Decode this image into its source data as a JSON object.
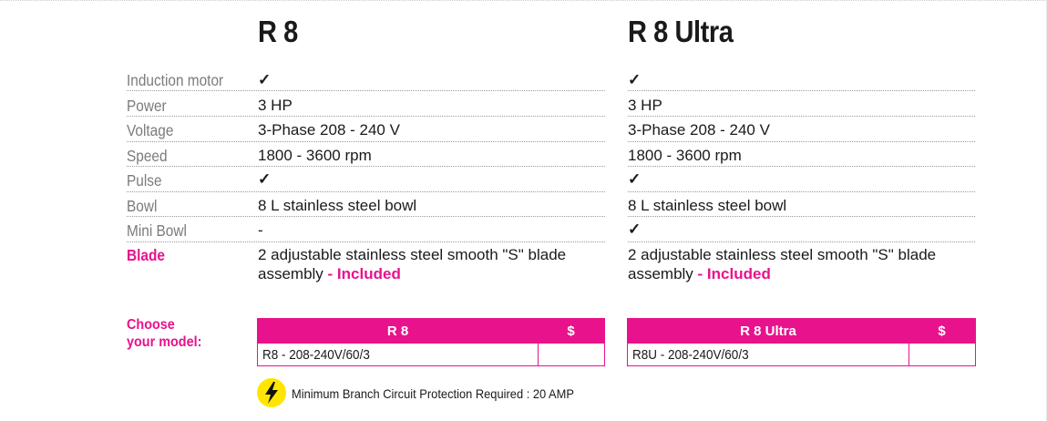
{
  "products": [
    {
      "name": "R 8"
    },
    {
      "name": "R 8 Ultra"
    }
  ],
  "specs": [
    {
      "label": "Induction motor",
      "v1": "✓",
      "v2": "✓"
    },
    {
      "label": "Power",
      "v1": "3 HP",
      "v2": "3 HP"
    },
    {
      "label": "Voltage",
      "v1": "3-Phase 208 - 240 V",
      "v2": "3-Phase 208 - 240 V"
    },
    {
      "label": "Speed",
      "v1": "1800 - 3600 rpm",
      "v2": "1800 - 3600 rpm"
    },
    {
      "label": "Pulse",
      "v1": "✓",
      "v2": "✓"
    },
    {
      "label": "Bowl",
      "v1": "8 L stainless steel bowl",
      "v2": "8 L stainless steel bowl"
    },
    {
      "label": "Mini Bowl",
      "v1": "-",
      "v2": "✓"
    }
  ],
  "blade": {
    "label": "Blade",
    "line1": "2 adjustable stainless steel smooth \"S\" blade",
    "line2": "assembly",
    "included": "- Included"
  },
  "choose": {
    "line1": "Choose",
    "line2": "your model:"
  },
  "models": [
    {
      "header": "R 8",
      "price_header": "$",
      "model": "R8 - 208-240V/60/3",
      "price": ""
    },
    {
      "header": "R 8 Ultra",
      "price_header": "$",
      "model": "R8U - 208-240V/60/3",
      "price": ""
    }
  ],
  "notice": {
    "text": "Minimum Branch Circuit Protection Required : 20 AMP",
    "icon": "lightning-bolt-icon"
  },
  "colors": {
    "accent": "#e8128c",
    "warning": "#ffe600"
  }
}
